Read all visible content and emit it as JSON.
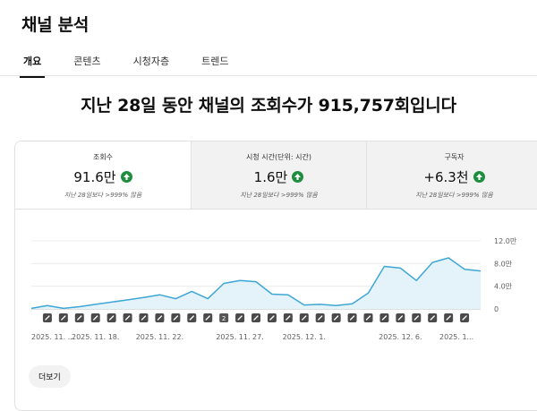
{
  "header": {
    "title": "채널 분석"
  },
  "tabs": [
    {
      "label": "개요"
    },
    {
      "label": "콘텐츠"
    },
    {
      "label": "시청자층"
    },
    {
      "label": "트렌드"
    }
  ],
  "headline": "지난 28일 동안 채널의 조회수가 915,757회입니다",
  "metrics": [
    {
      "label": "조회수",
      "value": "91.6만",
      "sub": "지난 28일보다 >999% 많음"
    },
    {
      "label": "시청 시간(단위: 시간)",
      "value": "1.6만",
      "sub": "지난 28일보다 >999% 많음"
    },
    {
      "label": "구독자",
      "value": "+6.3천",
      "sub": "지난 28일보다 >999% 많음"
    }
  ],
  "colors": {
    "accent": "#3ea6d4",
    "fill": "#e4f3fa",
    "positive": "#1e8e3e"
  },
  "chart_data": {
    "type": "area",
    "y_ticks": [
      "12.0만",
      "8.0만",
      "4.0만",
      "0"
    ],
    "ylim": [
      0,
      120000
    ],
    "x_tick_labels": [
      "2025. 11. ...",
      "2025. 11. 18.",
      "2025. 11. 22.",
      "2025. 11. 27.",
      "2025. 12. 1.",
      "2025. 12. 6.",
      "2025. 1..."
    ],
    "values": [
      1000,
      6000,
      1000,
      4000,
      8000,
      12000,
      16000,
      20000,
      25000,
      18000,
      31000,
      18000,
      45000,
      50000,
      48000,
      26000,
      25000,
      7000,
      8000,
      6000,
      9000,
      28000,
      75000,
      72000,
      50000,
      82000,
      90000,
      70000,
      67000
    ],
    "markers": {
      "badge_index": 12,
      "badge_label": "2"
    },
    "grid": true
  },
  "more_button": "더보기"
}
